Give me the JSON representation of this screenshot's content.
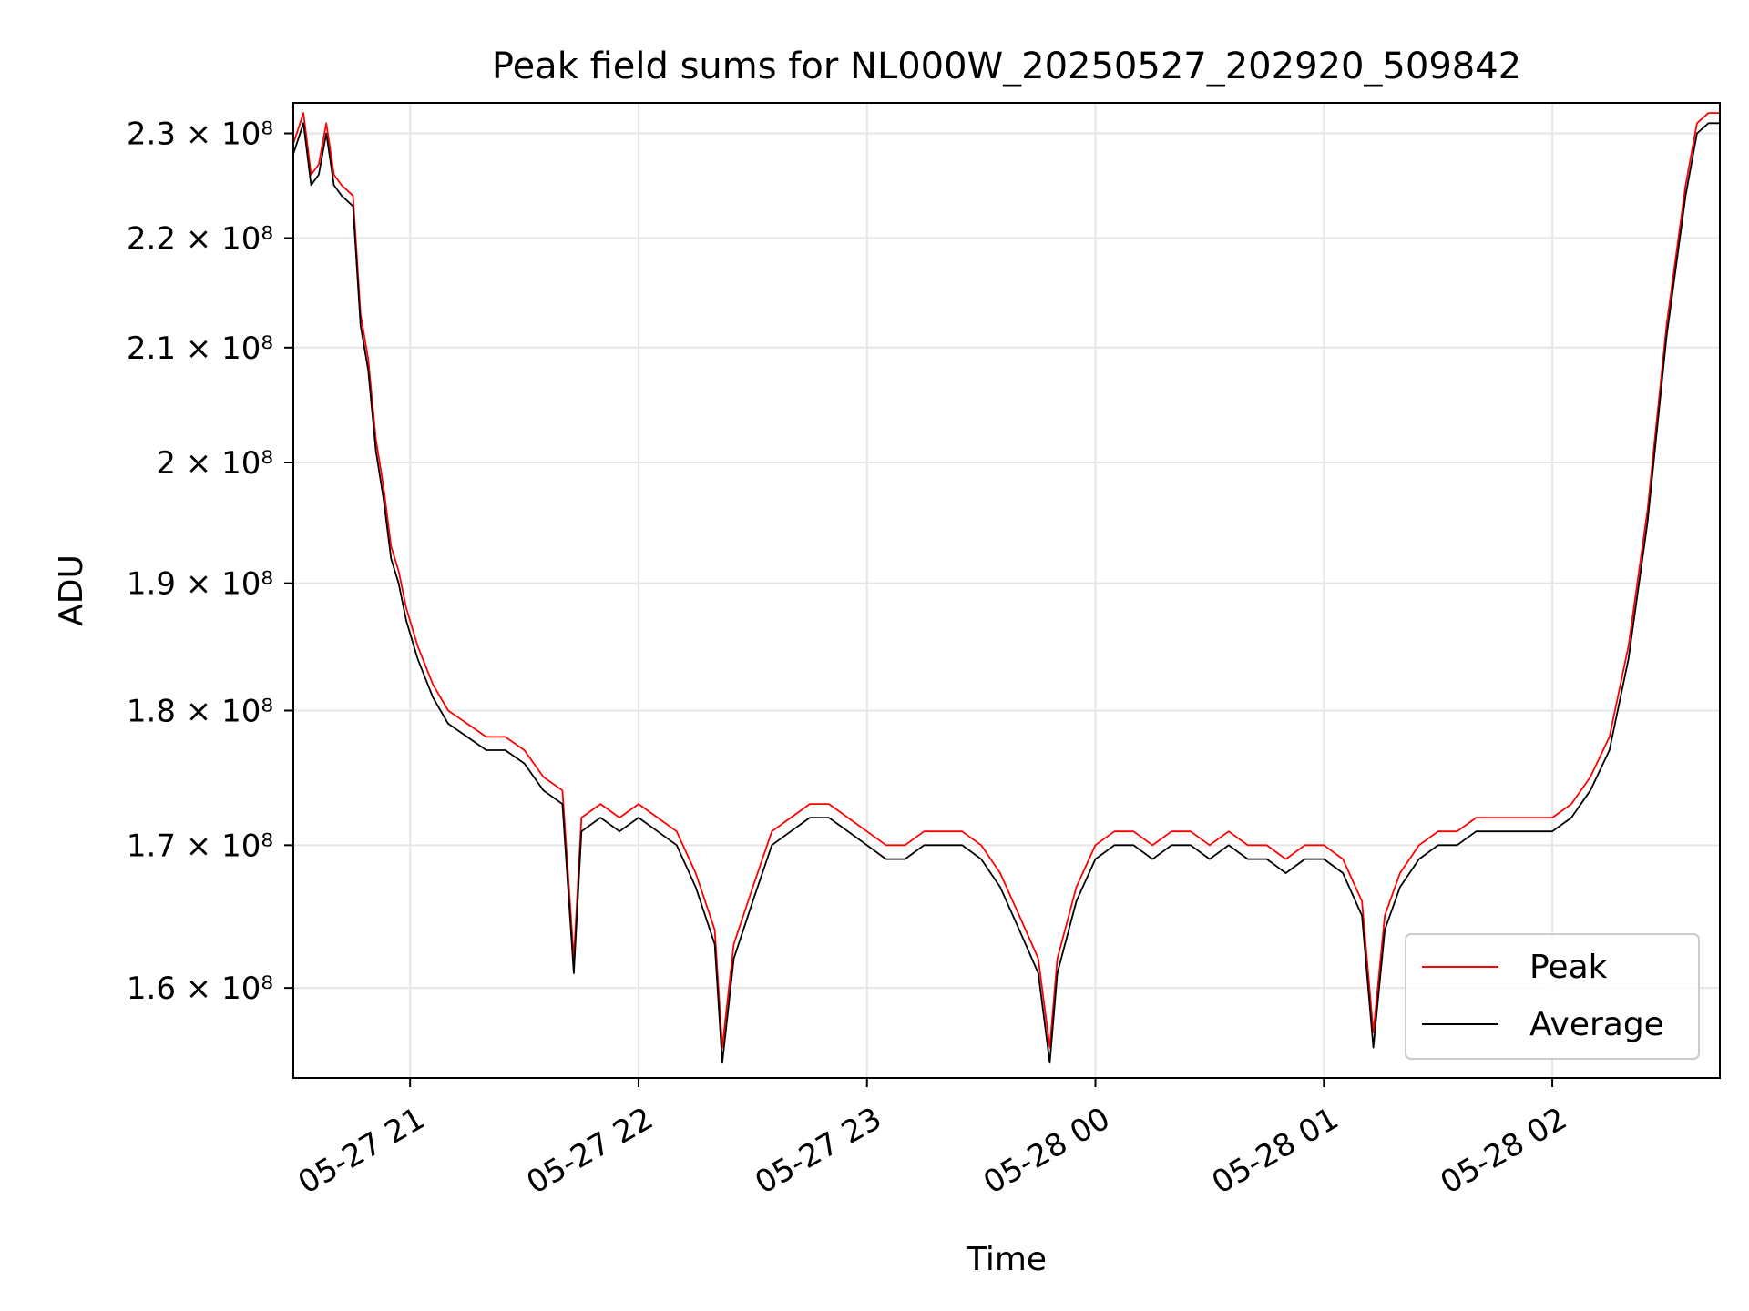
{
  "chart_data": {
    "type": "line",
    "title": "Peak field sums for NL000W_20250527_202920_509842",
    "xlabel": "Time",
    "ylabel": "ADU",
    "x_range": [
      "2025-05-27 20:29:20",
      "2025-05-28 02:44:00"
    ],
    "ylim": [
      154000000.0,
      233000000.0
    ],
    "yscale": "log",
    "grid": true,
    "legend": {
      "position": "lower-right"
    },
    "x_ticks": [
      {
        "time": "2025-05-27 21:00",
        "label": "05-27 21"
      },
      {
        "time": "2025-05-27 22:00",
        "label": "05-27 22"
      },
      {
        "time": "2025-05-27 23:00",
        "label": "05-27 23"
      },
      {
        "time": "2025-05-28 00:00",
        "label": "05-28 00"
      },
      {
        "time": "2025-05-28 01:00",
        "label": "05-28 01"
      },
      {
        "time": "2025-05-28 02:00",
        "label": "05-28 02"
      }
    ],
    "y_ticks": [
      {
        "value": 160000000.0,
        "label": "1.6 × 10⁸"
      },
      {
        "value": 170000000.0,
        "label": "1.7 × 10⁸"
      },
      {
        "value": 180000000.0,
        "label": "1.8 × 10⁸"
      },
      {
        "value": 190000000.0,
        "label": "1.9 × 10⁸"
      },
      {
        "value": 200000000.0,
        "label": "2 × 10⁸"
      },
      {
        "value": 210000000.0,
        "label": "2.1 × 10⁸"
      },
      {
        "value": 220000000.0,
        "label": "2.2 × 10⁸"
      },
      {
        "value": 230000000.0,
        "label": "2.3 × 10⁸"
      }
    ],
    "series": [
      {
        "name": "Peak",
        "color": "#ff0000",
        "points": [
          [
            "2025-05-27 20:29:20",
            229000000.0
          ],
          [
            "2025-05-27 20:32",
            232000000.0
          ],
          [
            "2025-05-27 20:34",
            226000000.0
          ],
          [
            "2025-05-27 20:36",
            227000000.0
          ],
          [
            "2025-05-27 20:38",
            231000000.0
          ],
          [
            "2025-05-27 20:40",
            226000000.0
          ],
          [
            "2025-05-27 20:42",
            225000000.0
          ],
          [
            "2025-05-27 20:45",
            224000000.0
          ],
          [
            "2025-05-27 20:47",
            213000000.0
          ],
          [
            "2025-05-27 20:49",
            209000000.0
          ],
          [
            "2025-05-27 20:51",
            202000000.0
          ],
          [
            "2025-05-27 20:53",
            198000000.0
          ],
          [
            "2025-05-27 20:55",
            193000000.0
          ],
          [
            "2025-05-27 20:57",
            191000000.0
          ],
          [
            "2025-05-27 20:59",
            188000000.0
          ],
          [
            "2025-05-27 21:02",
            185000000.0
          ],
          [
            "2025-05-27 21:06",
            182000000.0
          ],
          [
            "2025-05-27 21:10",
            180000000.0
          ],
          [
            "2025-05-27 21:15",
            179000000.0
          ],
          [
            "2025-05-27 21:20",
            178000000.0
          ],
          [
            "2025-05-27 21:25",
            178000000.0
          ],
          [
            "2025-05-27 21:30",
            177000000.0
          ],
          [
            "2025-05-27 21:35",
            175000000.0
          ],
          [
            "2025-05-27 21:40",
            174000000.0
          ],
          [
            "2025-05-27 21:43",
            162000000.0
          ],
          [
            "2025-05-27 21:45",
            172000000.0
          ],
          [
            "2025-05-27 21:50",
            173000000.0
          ],
          [
            "2025-05-27 21:55",
            172000000.0
          ],
          [
            "2025-05-27 22:00",
            173000000.0
          ],
          [
            "2025-05-27 22:05",
            172000000.0
          ],
          [
            "2025-05-27 22:10",
            171000000.0
          ],
          [
            "2025-05-27 22:15",
            168000000.0
          ],
          [
            "2025-05-27 22:20",
            164000000.0
          ],
          [
            "2025-05-27 22:22",
            156000000.0
          ],
          [
            "2025-05-27 22:25",
            163000000.0
          ],
          [
            "2025-05-27 22:30",
            167000000.0
          ],
          [
            "2025-05-27 22:35",
            171000000.0
          ],
          [
            "2025-05-27 22:40",
            172000000.0
          ],
          [
            "2025-05-27 22:45",
            173000000.0
          ],
          [
            "2025-05-27 22:50",
            173000000.0
          ],
          [
            "2025-05-27 22:55",
            172000000.0
          ],
          [
            "2025-05-27 23:00",
            171000000.0
          ],
          [
            "2025-05-27 23:05",
            170000000.0
          ],
          [
            "2025-05-27 23:10",
            170000000.0
          ],
          [
            "2025-05-27 23:15",
            171000000.0
          ],
          [
            "2025-05-27 23:20",
            171000000.0
          ],
          [
            "2025-05-27 23:25",
            171000000.0
          ],
          [
            "2025-05-27 23:30",
            170000000.0
          ],
          [
            "2025-05-27 23:35",
            168000000.0
          ],
          [
            "2025-05-27 23:40",
            165000000.0
          ],
          [
            "2025-05-27 23:45",
            162000000.0
          ],
          [
            "2025-05-27 23:48",
            156000000.0
          ],
          [
            "2025-05-27 23:50",
            162000000.0
          ],
          [
            "2025-05-27 23:55",
            167000000.0
          ],
          [
            "2025-05-28 00:00",
            170000000.0
          ],
          [
            "2025-05-28 00:05",
            171000000.0
          ],
          [
            "2025-05-28 00:10",
            171000000.0
          ],
          [
            "2025-05-28 00:15",
            170000000.0
          ],
          [
            "2025-05-28 00:20",
            171000000.0
          ],
          [
            "2025-05-28 00:25",
            171000000.0
          ],
          [
            "2025-05-28 00:30",
            170000000.0
          ],
          [
            "2025-05-28 00:35",
            171000000.0
          ],
          [
            "2025-05-28 00:40",
            170000000.0
          ],
          [
            "2025-05-28 00:45",
            170000000.0
          ],
          [
            "2025-05-28 00:50",
            169000000.0
          ],
          [
            "2025-05-28 00:55",
            170000000.0
          ],
          [
            "2025-05-28 01:00",
            170000000.0
          ],
          [
            "2025-05-28 01:05",
            169000000.0
          ],
          [
            "2025-05-28 01:10",
            166000000.0
          ],
          [
            "2025-05-28 01:13",
            157000000.0
          ],
          [
            "2025-05-28 01:16",
            165000000.0
          ],
          [
            "2025-05-28 01:20",
            168000000.0
          ],
          [
            "2025-05-28 01:25",
            170000000.0
          ],
          [
            "2025-05-28 01:30",
            171000000.0
          ],
          [
            "2025-05-28 01:35",
            171000000.0
          ],
          [
            "2025-05-28 01:40",
            172000000.0
          ],
          [
            "2025-05-28 01:45",
            172000000.0
          ],
          [
            "2025-05-28 01:50",
            172000000.0
          ],
          [
            "2025-05-28 01:55",
            172000000.0
          ],
          [
            "2025-05-28 02:00",
            172000000.0
          ],
          [
            "2025-05-28 02:05",
            173000000.0
          ],
          [
            "2025-05-28 02:10",
            175000000.0
          ],
          [
            "2025-05-28 02:15",
            178000000.0
          ],
          [
            "2025-05-28 02:20",
            185000000.0
          ],
          [
            "2025-05-28 02:25",
            196000000.0
          ],
          [
            "2025-05-28 02:30",
            212000000.0
          ],
          [
            "2025-05-28 02:35",
            225000000.0
          ],
          [
            "2025-05-28 02:38",
            231000000.0
          ],
          [
            "2025-05-28 02:41",
            232000000.0
          ],
          [
            "2025-05-28 02:44",
            232000000.0
          ]
        ]
      },
      {
        "name": "Average",
        "color": "#000000",
        "points": [
          [
            "2025-05-27 20:29:20",
            228000000.0
          ],
          [
            "2025-05-27 20:32",
            231000000.0
          ],
          [
            "2025-05-27 20:34",
            225000000.0
          ],
          [
            "2025-05-27 20:36",
            226000000.0
          ],
          [
            "2025-05-27 20:38",
            230000000.0
          ],
          [
            "2025-05-27 20:40",
            225000000.0
          ],
          [
            "2025-05-27 20:42",
            224000000.0
          ],
          [
            "2025-05-27 20:45",
            223000000.0
          ],
          [
            "2025-05-27 20:47",
            212000000.0
          ],
          [
            "2025-05-27 20:49",
            208000000.0
          ],
          [
            "2025-05-27 20:51",
            201000000.0
          ],
          [
            "2025-05-27 20:53",
            197000000.0
          ],
          [
            "2025-05-27 20:55",
            192000000.0
          ],
          [
            "2025-05-27 20:57",
            190000000.0
          ],
          [
            "2025-05-27 20:59",
            187000000.0
          ],
          [
            "2025-05-27 21:02",
            184000000.0
          ],
          [
            "2025-05-27 21:06",
            181000000.0
          ],
          [
            "2025-05-27 21:10",
            179000000.0
          ],
          [
            "2025-05-27 21:15",
            178000000.0
          ],
          [
            "2025-05-27 21:20",
            177000000.0
          ],
          [
            "2025-05-27 21:25",
            177000000.0
          ],
          [
            "2025-05-27 21:30",
            176000000.0
          ],
          [
            "2025-05-27 21:35",
            174000000.0
          ],
          [
            "2025-05-27 21:40",
            173000000.0
          ],
          [
            "2025-05-27 21:43",
            161000000.0
          ],
          [
            "2025-05-27 21:45",
            171000000.0
          ],
          [
            "2025-05-27 21:50",
            172000000.0
          ],
          [
            "2025-05-27 21:55",
            171000000.0
          ],
          [
            "2025-05-27 22:00",
            172000000.0
          ],
          [
            "2025-05-27 22:05",
            171000000.0
          ],
          [
            "2025-05-27 22:10",
            170000000.0
          ],
          [
            "2025-05-27 22:15",
            167000000.0
          ],
          [
            "2025-05-27 22:20",
            163000000.0
          ],
          [
            "2025-05-27 22:22",
            155000000.0
          ],
          [
            "2025-05-27 22:25",
            162000000.0
          ],
          [
            "2025-05-27 22:30",
            166000000.0
          ],
          [
            "2025-05-27 22:35",
            170000000.0
          ],
          [
            "2025-05-27 22:40",
            171000000.0
          ],
          [
            "2025-05-27 22:45",
            172000000.0
          ],
          [
            "2025-05-27 22:50",
            172000000.0
          ],
          [
            "2025-05-27 22:55",
            171000000.0
          ],
          [
            "2025-05-27 23:00",
            170000000.0
          ],
          [
            "2025-05-27 23:05",
            169000000.0
          ],
          [
            "2025-05-27 23:10",
            169000000.0
          ],
          [
            "2025-05-27 23:15",
            170000000.0
          ],
          [
            "2025-05-27 23:20",
            170000000.0
          ],
          [
            "2025-05-27 23:25",
            170000000.0
          ],
          [
            "2025-05-27 23:30",
            169000000.0
          ],
          [
            "2025-05-27 23:35",
            167000000.0
          ],
          [
            "2025-05-27 23:40",
            164000000.0
          ],
          [
            "2025-05-27 23:45",
            161000000.0
          ],
          [
            "2025-05-27 23:48",
            155000000.0
          ],
          [
            "2025-05-27 23:50",
            161000000.0
          ],
          [
            "2025-05-27 23:55",
            166000000.0
          ],
          [
            "2025-05-28 00:00",
            169000000.0
          ],
          [
            "2025-05-28 00:05",
            170000000.0
          ],
          [
            "2025-05-28 00:10",
            170000000.0
          ],
          [
            "2025-05-28 00:15",
            169000000.0
          ],
          [
            "2025-05-28 00:20",
            170000000.0
          ],
          [
            "2025-05-28 00:25",
            170000000.0
          ],
          [
            "2025-05-28 00:30",
            169000000.0
          ],
          [
            "2025-05-28 00:35",
            170000000.0
          ],
          [
            "2025-05-28 00:40",
            169000000.0
          ],
          [
            "2025-05-28 00:45",
            169000000.0
          ],
          [
            "2025-05-28 00:50",
            168000000.0
          ],
          [
            "2025-05-28 00:55",
            169000000.0
          ],
          [
            "2025-05-28 01:00",
            169000000.0
          ],
          [
            "2025-05-28 01:05",
            168000000.0
          ],
          [
            "2025-05-28 01:10",
            165000000.0
          ],
          [
            "2025-05-28 01:13",
            156000000.0
          ],
          [
            "2025-05-28 01:16",
            164000000.0
          ],
          [
            "2025-05-28 01:20",
            167000000.0
          ],
          [
            "2025-05-28 01:25",
            169000000.0
          ],
          [
            "2025-05-28 01:30",
            170000000.0
          ],
          [
            "2025-05-28 01:35",
            170000000.0
          ],
          [
            "2025-05-28 01:40",
            171000000.0
          ],
          [
            "2025-05-28 01:45",
            171000000.0
          ],
          [
            "2025-05-28 01:50",
            171000000.0
          ],
          [
            "2025-05-28 01:55",
            171000000.0
          ],
          [
            "2025-05-28 02:00",
            171000000.0
          ],
          [
            "2025-05-28 02:05",
            172000000.0
          ],
          [
            "2025-05-28 02:10",
            174000000.0
          ],
          [
            "2025-05-28 02:15",
            177000000.0
          ],
          [
            "2025-05-28 02:20",
            184000000.0
          ],
          [
            "2025-05-28 02:25",
            195000000.0
          ],
          [
            "2025-05-28 02:30",
            211000000.0
          ],
          [
            "2025-05-28 02:35",
            224000000.0
          ],
          [
            "2025-05-28 02:38",
            230000000.0
          ],
          [
            "2025-05-28 02:41",
            231000000.0
          ],
          [
            "2025-05-28 02:44",
            231000000.0
          ]
        ]
      }
    ]
  }
}
